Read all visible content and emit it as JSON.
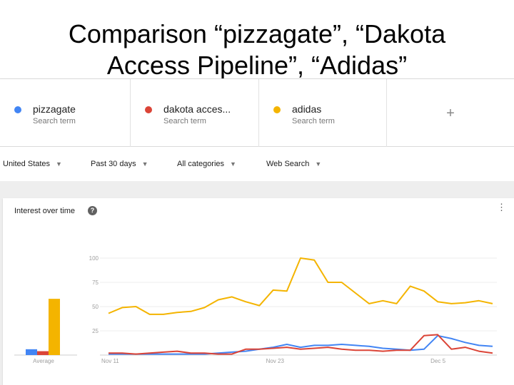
{
  "slide": {
    "title_line1": "Comparison “pizzagate”, “Dakota",
    "title_line2": "Access Pipeline”, “Adidas”"
  },
  "terms": [
    {
      "name": "pizzagate",
      "sub": "Search term",
      "color": "#4285f4"
    },
    {
      "name": "dakota acces...",
      "sub": "Search term",
      "color": "#db4437"
    },
    {
      "name": "adidas",
      "sub": "Search term",
      "color": "#f4b400"
    }
  ],
  "add_term_symbol": "+",
  "filters": {
    "region": "United States",
    "time": "Past 30 days",
    "category": "All categories",
    "search_type": "Web Search"
  },
  "card": {
    "title": "Interest over time",
    "help_glyph": "?"
  },
  "chart_data": {
    "type": "line",
    "yticks": [
      "100",
      "75",
      "50",
      "25"
    ],
    "ylim": [
      0,
      100
    ],
    "xlabels": [
      "Nov 11",
      "Nov 23",
      "Dec 5"
    ],
    "average_label": "Average",
    "averages": [
      6,
      4,
      58
    ],
    "series": [
      {
        "name": "pizzagate",
        "color": "#4285f4",
        "values": [
          1,
          1,
          1,
          1,
          1,
          1,
          1,
          1,
          2,
          3,
          4,
          6,
          8,
          11,
          8,
          10,
          10,
          11,
          10,
          9,
          7,
          6,
          5,
          6,
          20,
          17,
          13,
          10,
          9
        ]
      },
      {
        "name": "dakota acces...",
        "color": "#db4437",
        "values": [
          2,
          2,
          1,
          2,
          3,
          4,
          2,
          2,
          1,
          1,
          6,
          6,
          7,
          8,
          6,
          7,
          8,
          6,
          5,
          5,
          4,
          5,
          5,
          20,
          21,
          6,
          8,
          4,
          2
        ]
      },
      {
        "name": "adidas",
        "color": "#f4b400",
        "values": [
          43,
          49,
          50,
          42,
          42,
          44,
          45,
          49,
          57,
          60,
          55,
          51,
          67,
          66,
          100,
          98,
          75,
          75,
          64,
          53,
          56,
          53,
          71,
          66,
          55,
          53,
          54,
          56,
          53
        ]
      }
    ]
  }
}
